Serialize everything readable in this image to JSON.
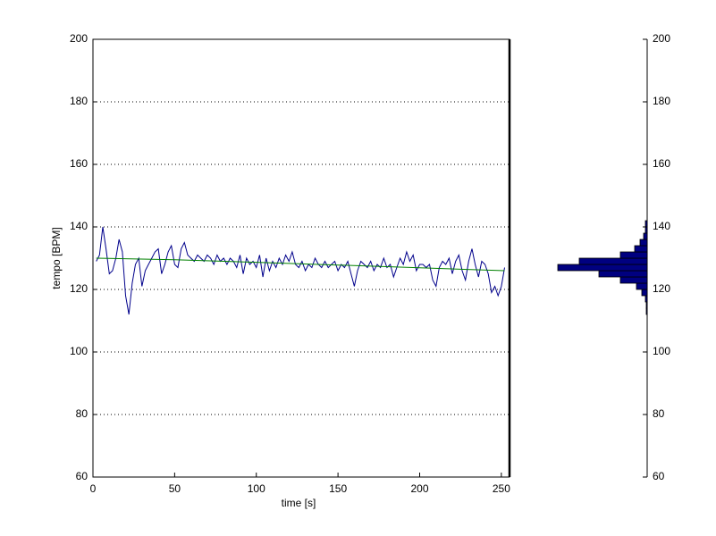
{
  "chart_data": [
    {
      "type": "line",
      "xlabel": "time [s]",
      "ylabel": "tempo [BPM]",
      "xlim": [
        0,
        255
      ],
      "xticks": [
        0,
        50,
        100,
        150,
        200,
        250
      ],
      "ylim": [
        60,
        200
      ],
      "yticks": [
        60,
        80,
        100,
        120,
        140,
        160,
        180,
        200
      ],
      "grid": true,
      "series": [
        {
          "color": "#00008b",
          "x": [
            2,
            4,
            6,
            8,
            10,
            12,
            14,
            16,
            18,
            20,
            22,
            24,
            26,
            28,
            30,
            32,
            34,
            36,
            38,
            40,
            42,
            44,
            46,
            48,
            50,
            52,
            54,
            56,
            58,
            60,
            62,
            64,
            66,
            68,
            70,
            72,
            74,
            76,
            78,
            80,
            82,
            84,
            86,
            88,
            90,
            92,
            94,
            96,
            98,
            100,
            102,
            104,
            106,
            108,
            110,
            112,
            114,
            116,
            118,
            120,
            122,
            124,
            126,
            128,
            130,
            132,
            134,
            136,
            138,
            140,
            142,
            144,
            146,
            148,
            150,
            152,
            154,
            156,
            158,
            160,
            162,
            164,
            166,
            168,
            170,
            172,
            174,
            176,
            178,
            180,
            182,
            184,
            186,
            188,
            190,
            192,
            194,
            196,
            198,
            200,
            202,
            204,
            206,
            208,
            210,
            212,
            214,
            216,
            218,
            220,
            222,
            224,
            226,
            228,
            230,
            232,
            234,
            236,
            238,
            240,
            242,
            244,
            246,
            248,
            250,
            252
          ],
          "values": [
            129,
            131,
            140,
            133,
            125,
            126,
            130,
            136,
            132,
            118,
            112,
            122,
            128,
            130,
            121,
            126,
            128,
            130,
            132,
            133,
            125,
            128,
            132,
            134,
            128,
            127,
            133,
            135,
            131,
            130,
            129,
            131,
            130,
            129,
            131,
            130,
            128,
            131,
            129,
            130,
            128,
            130,
            129,
            127,
            131,
            125,
            130,
            128,
            129,
            127,
            131,
            124,
            130,
            126,
            129,
            127,
            130,
            128,
            131,
            129,
            132,
            128,
            127,
            129,
            126,
            128,
            127,
            130,
            128,
            127,
            129,
            127,
            128,
            129,
            126,
            128,
            127,
            129,
            125,
            121,
            126,
            129,
            128,
            127,
            129,
            126,
            128,
            127,
            130,
            127,
            128,
            124,
            127,
            130,
            128,
            132,
            129,
            131,
            126,
            128,
            128,
            127,
            128,
            123,
            121,
            127,
            129,
            128,
            130,
            125,
            129,
            131,
            126,
            123,
            129,
            133,
            128,
            124,
            129,
            128,
            125,
            119,
            121,
            118,
            121,
            127
          ]
        },
        {
          "color": "#008000",
          "x": [
            2,
            50,
            100,
            150,
            200,
            252
          ],
          "values": [
            130,
            129.5,
            128.7,
            127.8,
            126.9,
            126
          ]
        }
      ]
    },
    {
      "type": "histogram",
      "orientation": "horizontal",
      "color": "#000080",
      "bins": [
        112,
        114,
        116,
        118,
        120,
        122,
        124,
        126,
        128,
        130,
        132,
        134,
        136,
        138,
        140,
        142
      ],
      "counts": [
        1,
        1,
        2,
        6,
        12,
        30,
        54,
        100,
        76,
        30,
        14,
        8,
        4,
        2,
        2
      ],
      "xlim": [
        0,
        154
      ],
      "ylim": [
        60,
        200
      ],
      "yticks": [
        60,
        80,
        100,
        120,
        140,
        160,
        180,
        200
      ]
    }
  ]
}
